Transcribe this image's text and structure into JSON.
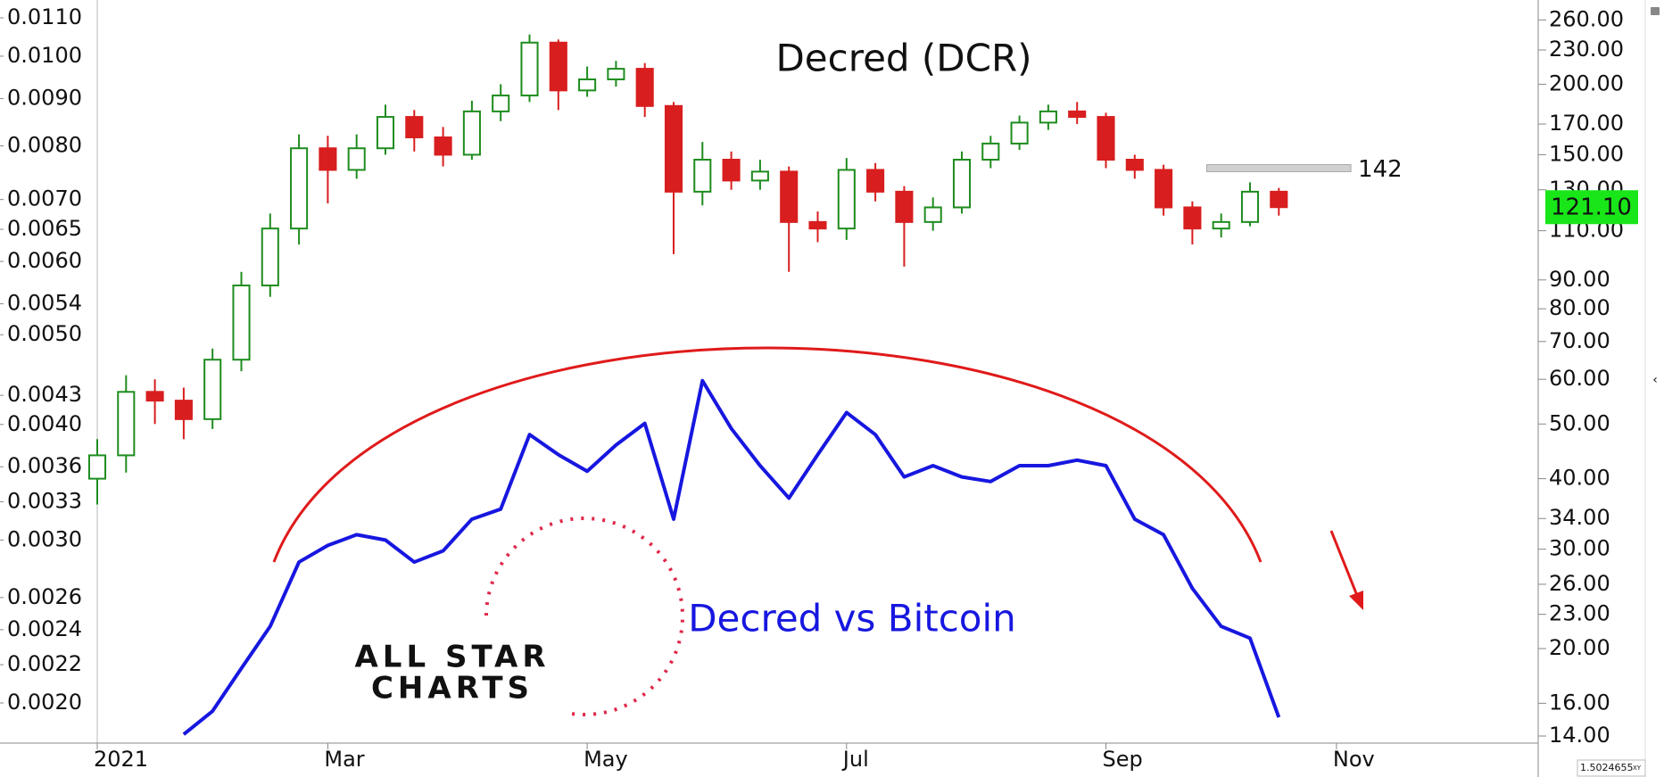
{
  "chart_data": {
    "type": "candlestick",
    "title": "Decred (DCR)",
    "log_scale": true,
    "categories": [
      "2021",
      null,
      null,
      null,
      null,
      null,
      null,
      null,
      "Mar",
      null,
      null,
      null,
      null,
      null,
      null,
      null,
      null,
      "May",
      null,
      null,
      null,
      null,
      null,
      null,
      null,
      null,
      "Jul",
      null,
      null,
      null,
      null,
      null,
      null,
      null,
      null,
      "Sep",
      null,
      null,
      null,
      null,
      null,
      null,
      null,
      "Nov",
      null,
      null,
      null,
      null,
      null,
      null
    ],
    "ylim": [
      0.00181,
      0.0115
    ],
    "yticks": [
      {
        "value": 0.011,
        "label": "0.0110"
      },
      {
        "value": 0.01,
        "label": "0.0100"
      },
      {
        "value": 0.009,
        "label": "0.0090"
      },
      {
        "value": 0.008,
        "label": "0.0080"
      },
      {
        "value": 0.007,
        "label": "0.0070"
      },
      {
        "value": 0.0065,
        "label": "0.0065"
      },
      {
        "value": 0.006,
        "label": "0.0060"
      },
      {
        "value": 0.0054,
        "label": "0.0054"
      },
      {
        "value": 0.005,
        "label": "0.0050"
      },
      {
        "value": 0.0043,
        "label": "0.0043"
      },
      {
        "value": 0.004,
        "label": "0.0040"
      },
      {
        "value": 0.0036,
        "label": "0.0036"
      },
      {
        "value": 0.0033,
        "label": "0.0033"
      },
      {
        "value": 0.003,
        "label": "0.0030"
      },
      {
        "value": 0.0026,
        "label": "0.0026"
      },
      {
        "value": 0.0024,
        "label": "0.0024"
      },
      {
        "value": 0.0022,
        "label": "0.0022"
      },
      {
        "value": 0.002,
        "label": "0.0020"
      }
    ],
    "y2lim": [
      13.6,
      282
    ],
    "y2ticks": [
      {
        "value": 260,
        "label": "260.00"
      },
      {
        "value": 230,
        "label": "230.00"
      },
      {
        "value": 200,
        "label": "200.00"
      },
      {
        "value": 170,
        "label": "170.00"
      },
      {
        "value": 150,
        "label": "150.00"
      },
      {
        "value": 130,
        "label": "130.00"
      },
      {
        "value": 110,
        "label": "110.00"
      },
      {
        "value": 90,
        "label": "90.00"
      },
      {
        "value": 80,
        "label": "80.00"
      },
      {
        "value": 70,
        "label": "70.00"
      },
      {
        "value": 60,
        "label": "60.00"
      },
      {
        "value": 50,
        "label": "50.00"
      },
      {
        "value": 40,
        "label": "40.00"
      },
      {
        "value": 34,
        "label": "34.00"
      },
      {
        "value": 30,
        "label": "30.00"
      },
      {
        "value": 26,
        "label": "26.00"
      },
      {
        "value": 23,
        "label": "23.00"
      },
      {
        "value": 20,
        "label": "20.00"
      },
      {
        "value": 16,
        "label": "16.00"
      },
      {
        "value": 14,
        "label": "14.00"
      }
    ],
    "series": [
      {
        "type": "candlestick",
        "axis": "y2",
        "up_color": "#1e8c1e",
        "down_color": "#d81e1e",
        "open": [
          40,
          44,
          57,
          55,
          51,
          65,
          88,
          111,
          154,
          141,
          154,
          175,
          161,
          150,
          179,
          191,
          237,
          195,
          204,
          213,
          183,
          129,
          147,
          135,
          140,
          114,
          111,
          141,
          129,
          114,
          121,
          147,
          157,
          171,
          179,
          175,
          147,
          141,
          121,
          111,
          114,
          129,
          null,
          null,
          null,
          null,
          null,
          null,
          null,
          null
        ],
        "high": [
          47,
          61,
          60,
          58,
          68,
          93,
          118,
          163,
          162,
          163,
          184,
          180,
          168,
          187,
          200,
          245,
          240,
          215,
          220,
          218,
          186,
          158,
          152,
          147,
          143,
          119,
          148,
          145,
          132,
          126,
          152,
          162,
          176,
          184,
          186,
          178,
          150,
          144,
          124,
          118,
          134,
          131,
          null,
          null,
          null,
          null,
          null,
          null,
          null,
          null
        ],
        "low": [
          36,
          41,
          50,
          47,
          49,
          62,
          84,
          104,
          123,
          136,
          150,
          152,
          143,
          147,
          172,
          186,
          180,
          190,
          198,
          175,
          100,
          122,
          130,
          130,
          93,
          105,
          106,
          124,
          95,
          110,
          118,
          142,
          153,
          166,
          170,
          142,
          136,
          117,
          104,
          107,
          112,
          117,
          null,
          null,
          null,
          null,
          null,
          null,
          null,
          null
        ],
        "close": [
          44,
          57,
          55,
          51,
          65,
          88,
          111,
          154,
          141,
          154,
          175,
          161,
          150,
          179,
          191,
          237,
          195,
          204,
          213,
          183,
          129,
          147,
          135,
          140,
          114,
          111,
          141,
          129,
          114,
          121,
          147,
          157,
          171,
          179,
          175,
          147,
          141,
          121,
          111,
          114,
          129,
          121.1,
          null,
          null,
          null,
          null,
          null,
          null,
          null,
          null
        ]
      },
      {
        "type": "line",
        "axis": "y",
        "name": "Decred vs Bitcoin",
        "color": "#1717e0",
        "values": [
          null,
          null,
          null,
          0.00185,
          0.00196,
          0.00218,
          0.00242,
          0.00284,
          0.00296,
          0.00304,
          0.003,
          0.00284,
          0.00292,
          0.00316,
          0.00324,
          0.0039,
          0.00371,
          0.00356,
          0.0038,
          0.00401,
          0.00316,
          0.00446,
          0.00396,
          0.00361,
          0.00333,
          0.00371,
          0.00412,
          0.0039,
          0.00351,
          0.00361,
          0.00351,
          0.00347,
          0.00361,
          0.00361,
          0.00366,
          0.00361,
          0.00316,
          0.00304,
          0.00266,
          0.00242,
          0.00235,
          0.00193,
          null,
          null,
          null,
          null,
          null,
          null,
          null,
          null
        ]
      }
    ],
    "level": 142,
    "level_color": "#d0d0d0",
    "last_price": {
      "value": 121.1,
      "label": "121.10",
      "color": "#19e619"
    },
    "corner_label": "1.5024655",
    "corner_suffix": "XY"
  },
  "logo": {
    "line1": "ALL STAR",
    "line2": "CHARTS"
  }
}
